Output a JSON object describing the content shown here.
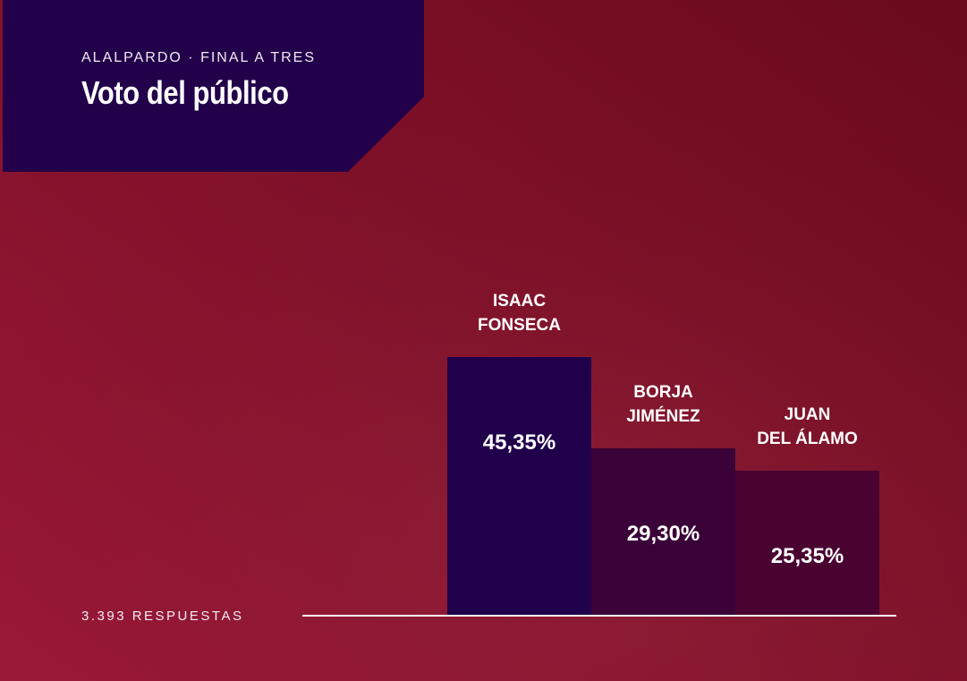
{
  "header": {
    "kicker": "ALALPARDO · FINAL A TRES",
    "title": "Voto del público"
  },
  "footer": {
    "responses": "3.393 RESPUESTAS"
  },
  "colors": {
    "background_light": "#9a1838",
    "background_dark": "#6a0a1c",
    "header_panel": "#22004a",
    "bar_1": "#21004b",
    "bar_2": "#3a0238",
    "bar_3": "#4a0231",
    "axis_line": "#ffffff"
  },
  "chart_data": {
    "type": "bar",
    "categories": [
      [
        "ISAAC",
        "FONSECA"
      ],
      [
        "BORJA",
        "JIMÉNEZ"
      ],
      [
        "JUAN",
        "DEL ÁLAMO"
      ]
    ],
    "values": [
      45.35,
      29.3,
      25.35
    ],
    "value_labels": [
      "45,35%",
      "29,30%",
      "25,35%"
    ],
    "ylim": [
      0,
      45.35
    ],
    "grid": false,
    "legend": "none"
  }
}
